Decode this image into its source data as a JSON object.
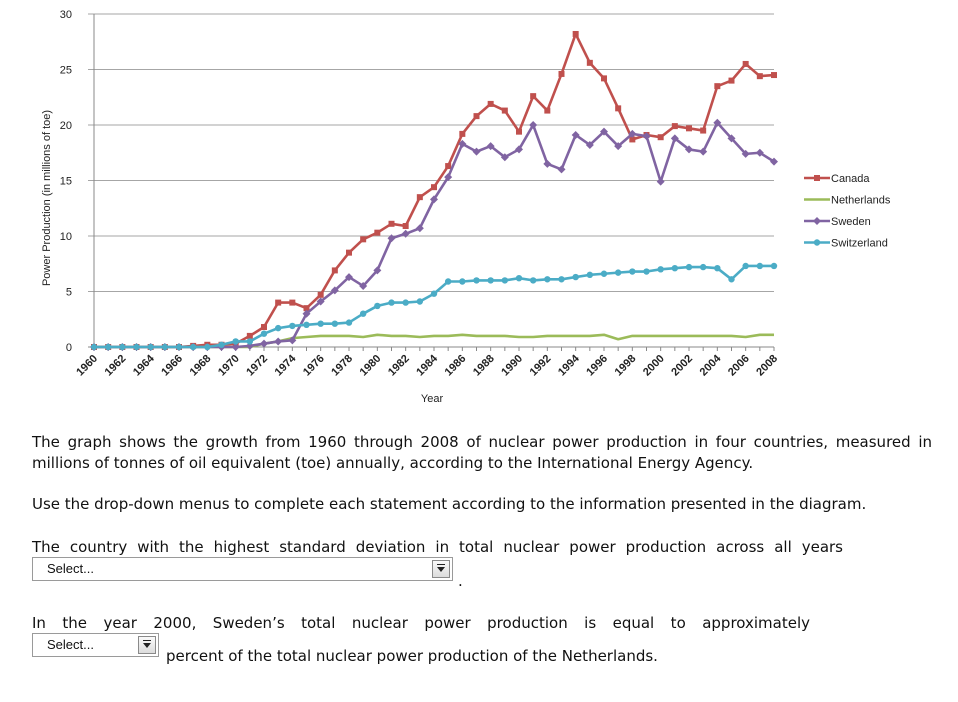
{
  "chart_data": {
    "type": "line",
    "title": "",
    "xlabel": "Year",
    "ylabel": "Power Production (in millions of toe)",
    "ylim": [
      0,
      30
    ],
    "yticks": [
      0,
      5,
      10,
      15,
      20,
      25,
      30
    ],
    "x": [
      1960,
      1961,
      1962,
      1963,
      1964,
      1965,
      1966,
      1967,
      1968,
      1969,
      1970,
      1971,
      1972,
      1973,
      1974,
      1975,
      1976,
      1977,
      1978,
      1979,
      1980,
      1981,
      1982,
      1983,
      1984,
      1985,
      1986,
      1987,
      1988,
      1989,
      1990,
      1991,
      1992,
      1993,
      1994,
      1995,
      1996,
      1997,
      1998,
      1999,
      2000,
      2001,
      2002,
      2003,
      2004,
      2005,
      2006,
      2007,
      2008
    ],
    "xticks": [
      "1960",
      "1962",
      "1964",
      "1966",
      "1968",
      "1970",
      "1972",
      "1974",
      "1976",
      "1978",
      "1980",
      "1982",
      "1984",
      "1986",
      "1988",
      "1990",
      "1992",
      "1994",
      "1996",
      "1998",
      "2000",
      "2002",
      "2004",
      "2006",
      "2008"
    ],
    "grid": true,
    "legend_position": "right",
    "series": [
      {
        "name": "Canada",
        "color": "#c0504d",
        "marker": "square",
        "values": [
          0,
          0,
          0,
          0,
          0,
          0,
          0,
          0.1,
          0.2,
          0.2,
          0.3,
          1.0,
          1.8,
          4.0,
          4.0,
          3.5,
          4.7,
          6.9,
          8.5,
          9.7,
          10.3,
          11.1,
          10.9,
          13.5,
          14.4,
          16.3,
          19.2,
          20.8,
          21.9,
          21.3,
          19.4,
          22.6,
          21.3,
          24.6,
          28.2,
          25.6,
          24.2,
          21.5,
          18.7,
          19.1,
          18.9,
          19.9,
          19.7,
          19.5,
          23.5,
          24.0,
          25.5,
          24.4,
          24.5
        ]
      },
      {
        "name": "Netherlands",
        "color": "#9bbb59",
        "marker": "none",
        "values": [
          0,
          0,
          0,
          0,
          0,
          0,
          0,
          0,
          0,
          0,
          0,
          0,
          0.3,
          0.5,
          0.8,
          0.9,
          1.0,
          1.0,
          1.0,
          0.9,
          1.1,
          1.0,
          1.0,
          0.9,
          1.0,
          1.0,
          1.1,
          1.0,
          1.0,
          1.0,
          0.9,
          0.9,
          1.0,
          1.0,
          1.0,
          1.0,
          1.1,
          0.7,
          1.0,
          1.0,
          1.0,
          1.0,
          1.0,
          1.0,
          1.0,
          1.0,
          0.9,
          1.1,
          1.1
        ]
      },
      {
        "name": "Sweden",
        "color": "#8064a2",
        "marker": "diamond",
        "values": [
          0,
          0,
          0,
          0,
          0,
          0,
          0,
          0,
          0,
          0,
          0,
          0.1,
          0.3,
          0.5,
          0.6,
          3.0,
          4.1,
          5.1,
          6.3,
          5.5,
          6.9,
          9.8,
          10.2,
          10.7,
          13.3,
          15.3,
          18.3,
          17.6,
          18.1,
          17.1,
          17.8,
          20.0,
          16.5,
          16.0,
          19.1,
          18.2,
          19.4,
          18.1,
          19.2,
          19.0,
          14.9,
          18.8,
          17.8,
          17.6,
          20.2,
          18.8,
          17.4,
          17.5,
          16.7
        ]
      },
      {
        "name": "Switzerland",
        "color": "#4bacc6",
        "marker": "circle",
        "values": [
          0,
          0,
          0,
          0,
          0,
          0,
          0,
          0,
          0,
          0.2,
          0.5,
          0.5,
          1.2,
          1.7,
          1.9,
          2.0,
          2.1,
          2.1,
          2.2,
          3.0,
          3.7,
          4.0,
          4.0,
          4.1,
          4.8,
          5.9,
          5.9,
          6.0,
          6.0,
          6.0,
          6.2,
          6.0,
          6.1,
          6.1,
          6.3,
          6.5,
          6.6,
          6.7,
          6.8,
          6.8,
          7.0,
          7.1,
          7.2,
          7.2,
          7.1,
          6.1,
          7.3,
          7.3,
          7.3
        ]
      }
    ]
  },
  "intro": "The graph shows the growth from 1960 through 2008 of nuclear power production in four countries, measured in millions of tonnes of oil equivalent (toe) annually, according to the International Energy Agency.",
  "instructions": "Use the drop-down menus to complete each statement according to the information presented in the diagram.",
  "question1": {
    "text": "The country with the highest standard deviation in total nuclear power production across all years",
    "select_value": "Select...",
    "suffix": "."
  },
  "question2": {
    "text": "In the year 2000, Sweden’s total nuclear power production is equal to approximately",
    "select_value": "Select...",
    "suffix": "percent of the total nuclear power production of the Netherlands."
  }
}
